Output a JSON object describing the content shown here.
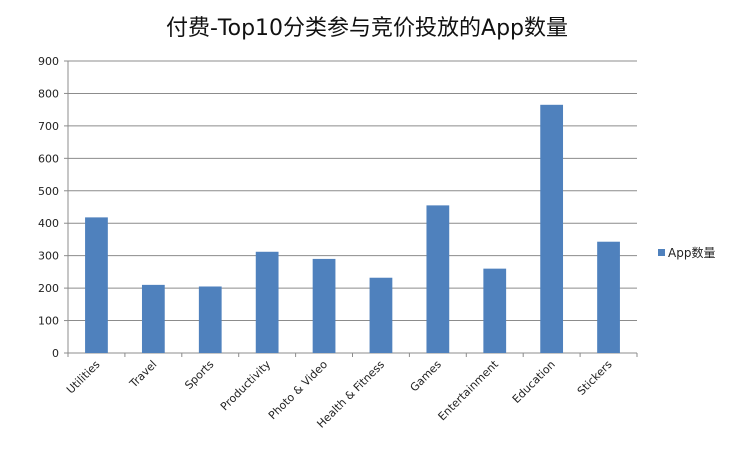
{
  "chart_data": {
    "type": "bar",
    "title": "付费-Top10分类参与竞价投放的App数量",
    "xlabel": "",
    "ylabel": "",
    "categories": [
      "Utilities",
      "Travel",
      "Sports",
      "Productivity",
      "Photo & Video",
      "Health & Fitness",
      "Games",
      "Entertainment",
      "Education",
      "Stickers"
    ],
    "series": [
      {
        "name": "App数量",
        "values": [
          418,
          210,
          205,
          312,
          290,
          232,
          455,
          260,
          765,
          343
        ],
        "color": "#4F81BD"
      }
    ],
    "ylim": [
      0,
      900
    ],
    "yticks": [
      0,
      100,
      200,
      300,
      400,
      500,
      600,
      700,
      800,
      900
    ],
    "grid": true,
    "legend": "right"
  }
}
